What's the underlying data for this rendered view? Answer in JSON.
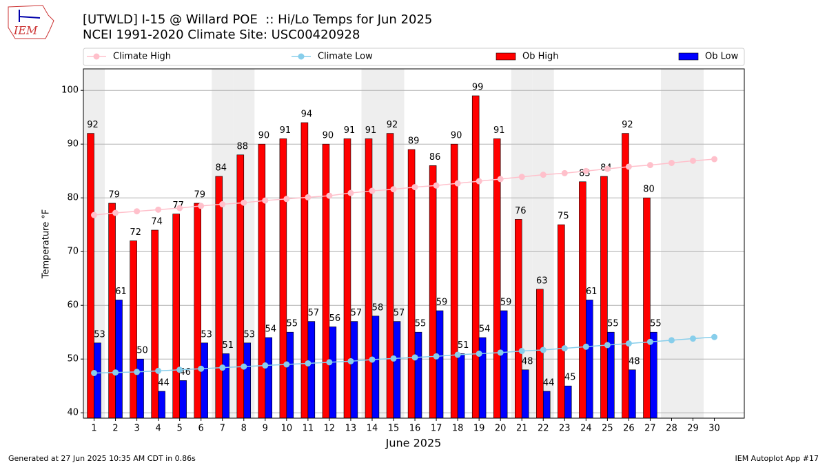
{
  "chart_data": {
    "type": "bar",
    "title": "[UTWLD] I-15 @ Willard POE  :: Hi/Lo Temps for Jun 2025",
    "subtitle": "NCEI 1991-2020 Climate Site: USC00420928",
    "x_label": "June 2025",
    "y_label": "Temperature °F",
    "x": [
      1,
      2,
      3,
      4,
      5,
      6,
      7,
      8,
      9,
      10,
      11,
      12,
      13,
      14,
      15,
      16,
      17,
      18,
      19,
      20,
      21,
      22,
      23,
      24,
      25,
      26,
      27,
      28,
      29,
      30
    ],
    "xlim": [
      0.5,
      31.4
    ],
    "xticks": [
      1,
      2,
      3,
      4,
      5,
      6,
      7,
      8,
      9,
      10,
      11,
      12,
      13,
      14,
      15,
      16,
      17,
      18,
      19,
      20,
      21,
      22,
      23,
      24,
      25,
      26,
      27,
      28,
      29,
      30
    ],
    "ylim": [
      39,
      104
    ],
    "yticks": [
      40,
      50,
      60,
      70,
      80,
      90,
      100
    ],
    "grid": true,
    "legend": "top",
    "shaded_days": [
      1,
      7,
      8,
      14,
      15,
      21,
      22,
      28,
      29
    ],
    "shade_color": "#eeeeee",
    "series": [
      {
        "name": "Climate High",
        "kind": "line",
        "color": "#ffc0cb",
        "values": [
          76.8,
          77.2,
          77.5,
          77.8,
          78.1,
          78.5,
          78.8,
          79.1,
          79.5,
          79.8,
          80.1,
          80.4,
          80.9,
          81.3,
          81.6,
          82.0,
          82.3,
          82.7,
          83.1,
          83.5,
          83.9,
          84.3,
          84.6,
          85.0,
          85.4,
          85.8,
          86.1,
          86.5,
          86.9,
          87.2
        ]
      },
      {
        "name": "Climate Low",
        "kind": "line",
        "color": "#87ceeb",
        "values": [
          47.4,
          47.5,
          47.6,
          47.8,
          48.0,
          48.2,
          48.4,
          48.6,
          48.8,
          49.0,
          49.2,
          49.4,
          49.6,
          49.9,
          50.1,
          50.3,
          50.5,
          50.8,
          51.0,
          51.2,
          51.5,
          51.7,
          52.0,
          52.3,
          52.6,
          52.9,
          53.2,
          53.5,
          53.8,
          54.1
        ]
      },
      {
        "name": "Ob High",
        "kind": "bar",
        "color": "#ff0000",
        "values": [
          92,
          79,
          72,
          74,
          77,
          79,
          84,
          88,
          90,
          91,
          94,
          90,
          91,
          91,
          92,
          89,
          86,
          90,
          99,
          91,
          76,
          63,
          75,
          83,
          84,
          92,
          80,
          null,
          null,
          null
        ]
      },
      {
        "name": "Ob Low",
        "kind": "bar",
        "color": "#0000ff",
        "values": [
          53,
          61,
          50,
          44,
          46,
          53,
          51,
          53,
          54,
          55,
          57,
          56,
          57,
          58,
          57,
          55,
          59,
          51,
          54,
          59,
          48,
          44,
          45,
          61,
          55,
          48,
          55,
          null,
          null,
          null
        ]
      }
    ]
  },
  "logo_text": "IEM",
  "footer_left": "Generated at 27 Jun 2025 10:35 AM CDT in 0.86s",
  "footer_right": "IEM Autoplot App #17"
}
